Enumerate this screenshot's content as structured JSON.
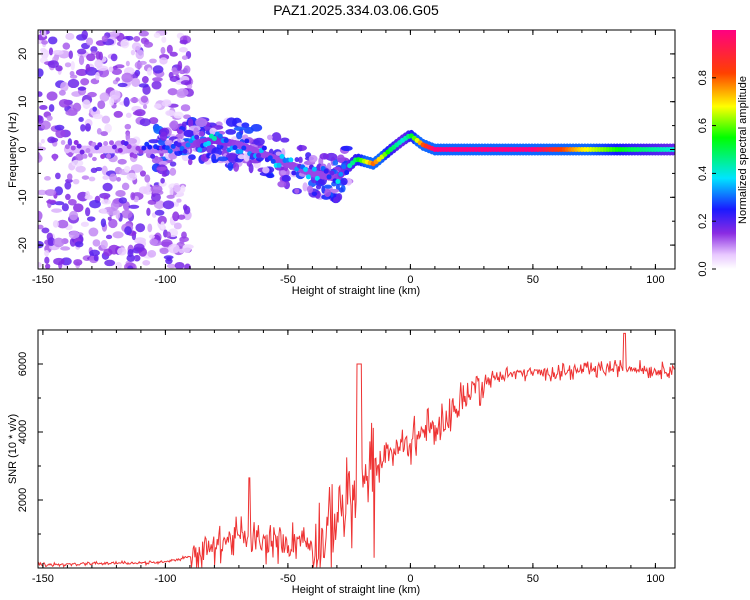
{
  "title": "PAZ1.2025.334.03.06.G05",
  "chart_data": [
    {
      "type": "heatmap",
      "xlabel": "Height of straight line (km)",
      "ylabel": "Frequency (Hz)",
      "xlim": [
        -152,
        108
      ],
      "ylim": [
        -25,
        25
      ],
      "xticks": [
        -150,
        -100,
        -50,
        0,
        50,
        100
      ],
      "yticks": [
        -20,
        -10,
        0,
        10,
        20
      ],
      "colorbar": {
        "label": "Normalized spectral amplitude",
        "range": [
          0.0,
          1.0
        ],
        "ticks": [
          0.0,
          0.2,
          0.4,
          0.6,
          0.8
        ]
      },
      "ridge": {
        "description_points_x": [
          -140,
          -120,
          -100,
          -90,
          -80,
          -70,
          -60,
          -50,
          -40,
          -30,
          -22,
          -15,
          -8,
          -3,
          0,
          5,
          10,
          20,
          50,
          70,
          90,
          108
        ],
        "description_points_y": [
          0,
          0,
          0,
          1,
          2,
          1,
          -1,
          -3,
          -5,
          -6,
          -2,
          -3,
          0,
          2,
          3,
          1,
          0,
          0,
          0,
          0,
          0,
          0
        ],
        "amplitude": [
          0.15,
          0.15,
          0.25,
          0.3,
          0.35,
          0.3,
          0.3,
          0.3,
          0.3,
          0.3,
          0.5,
          0.8,
          0.5,
          0.4,
          0.5,
          0.8,
          1.0,
          1.0,
          1.0,
          0.7,
          0.5,
          0.4
        ]
      }
    },
    {
      "type": "line",
      "xlabel": "Height of straight line (km)",
      "ylabel": "SNR (10 * v/v)",
      "xlim": [
        -152,
        108
      ],
      "ylim": [
        0,
        7000
      ],
      "xticks": [
        -150,
        -100,
        -50,
        0,
        50,
        100
      ],
      "yticks": [
        2000,
        4000,
        6000
      ],
      "series": [
        {
          "name": "SNR",
          "color": "#ee3333",
          "x": [
            -152,
            -140,
            -120,
            -105,
            -100,
            -95,
            -90,
            -85,
            -80,
            -75,
            -70,
            -65,
            -60,
            -55,
            -50,
            -45,
            -40,
            -35,
            -30,
            -25,
            -20,
            -15,
            -10,
            -5,
            0,
            5,
            10,
            15,
            20,
            25,
            30,
            35,
            40,
            50,
            60,
            70,
            80,
            90,
            100,
            108
          ],
          "y": [
            100,
            100,
            150,
            150,
            200,
            250,
            350,
            500,
            650,
            850,
            950,
            800,
            700,
            750,
            700,
            900,
            700,
            900,
            1600,
            2100,
            2200,
            2900,
            3400,
            3500,
            3700,
            4000,
            4100,
            4400,
            4800,
            5300,
            5500,
            5600,
            5700,
            5750,
            5750,
            5800,
            5850,
            5900,
            5800,
            5850
          ]
        }
      ]
    }
  ]
}
